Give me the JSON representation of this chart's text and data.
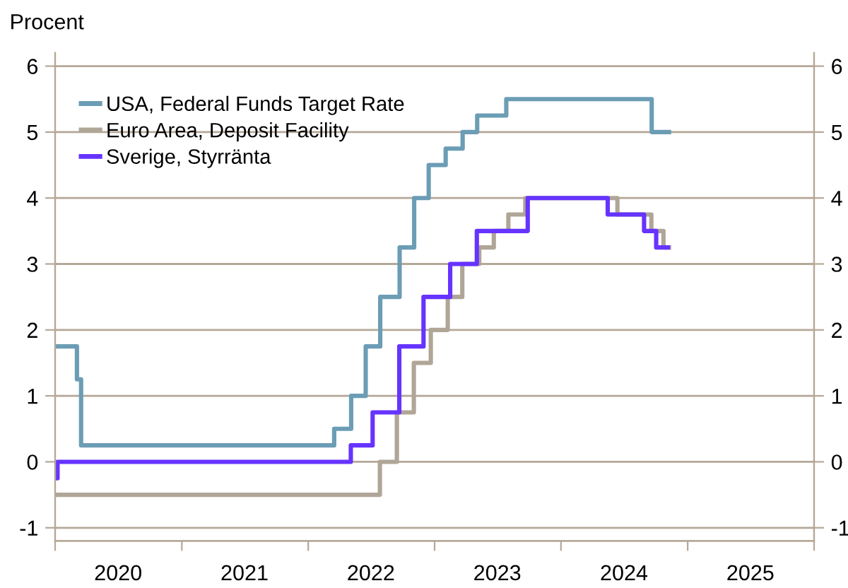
{
  "chart_data": {
    "type": "step",
    "ylabel": "Procent",
    "xlim": [
      "2020-01-01",
      "2026-01-01"
    ],
    "xticks": [
      {
        "value": "2020-01-01",
        "label": null
      },
      {
        "value": "2020-07-01",
        "label": "2020"
      },
      {
        "value": "2021-01-01",
        "label": null
      },
      {
        "value": "2021-07-01",
        "label": "2021"
      },
      {
        "value": "2022-01-01",
        "label": null
      },
      {
        "value": "2022-07-01",
        "label": "2022"
      },
      {
        "value": "2023-01-01",
        "label": null
      },
      {
        "value": "2023-07-01",
        "label": "2023"
      },
      {
        "value": "2024-01-01",
        "label": null
      },
      {
        "value": "2024-07-01",
        "label": "2024"
      },
      {
        "value": "2025-01-01",
        "label": null
      },
      {
        "value": "2025-07-01",
        "label": "2025"
      },
      {
        "value": "2026-01-01",
        "label": null
      }
    ],
    "ylim": [
      -1.2,
      6.2
    ],
    "yticks": [
      -1,
      0,
      1,
      2,
      3,
      4,
      5,
      6
    ],
    "y2lim": [
      -1.2,
      6.2
    ],
    "y2ticks": [
      -1,
      0,
      1,
      2,
      3,
      4,
      5,
      6
    ],
    "grid": "y",
    "legend": "top left",
    "line_style": "solid",
    "series": [
      {
        "name": "USA, Federal Funds Target Rate",
        "color": "#6b9db5",
        "x": [
          "2020-01-02",
          "2020-03-04",
          "2020-03-16",
          "2022-03-17",
          "2022-05-05",
          "2022-06-16",
          "2022-07-28",
          "2022-09-22",
          "2022-11-03",
          "2022-12-15",
          "2023-02-02",
          "2023-03-23",
          "2023-05-04",
          "2023-07-27",
          "2024-09-19",
          "2024-11-08"
        ],
        "values": [
          1.75,
          1.25,
          0.25,
          0.5,
          1.0,
          1.75,
          2.5,
          3.25,
          4.0,
          4.5,
          4.75,
          5.0,
          5.25,
          5.5,
          5.0,
          5.0
        ]
      },
      {
        "name": "Euro Area, Deposit Facility",
        "color": "#b0a697",
        "x": [
          "2020-01-02",
          "2022-07-27",
          "2022-09-14",
          "2022-11-02",
          "2022-12-21",
          "2023-02-08",
          "2023-03-22",
          "2023-05-10",
          "2023-06-21",
          "2023-08-02",
          "2023-09-20",
          "2024-06-12",
          "2024-09-18",
          "2024-10-23",
          "2024-11-08"
        ],
        "values": [
          -0.5,
          0.0,
          0.75,
          1.5,
          2.0,
          2.5,
          3.0,
          3.25,
          3.5,
          3.75,
          4.0,
          3.75,
          3.5,
          3.25,
          3.25
        ]
      },
      {
        "name": "Sverige, Styrränta",
        "color": "#6633ff",
        "x": [
          "2020-01-02",
          "2020-01-08",
          "2022-05-04",
          "2022-07-06",
          "2022-09-21",
          "2022-11-30",
          "2023-02-15",
          "2023-05-03",
          "2023-09-27",
          "2024-05-15",
          "2024-08-28",
          "2024-10-02",
          "2024-11-05"
        ],
        "values": [
          -0.25,
          0.0,
          0.25,
          0.75,
          1.75,
          2.5,
          3.0,
          3.5,
          4.0,
          3.75,
          3.5,
          3.25,
          3.25
        ]
      }
    ]
  }
}
